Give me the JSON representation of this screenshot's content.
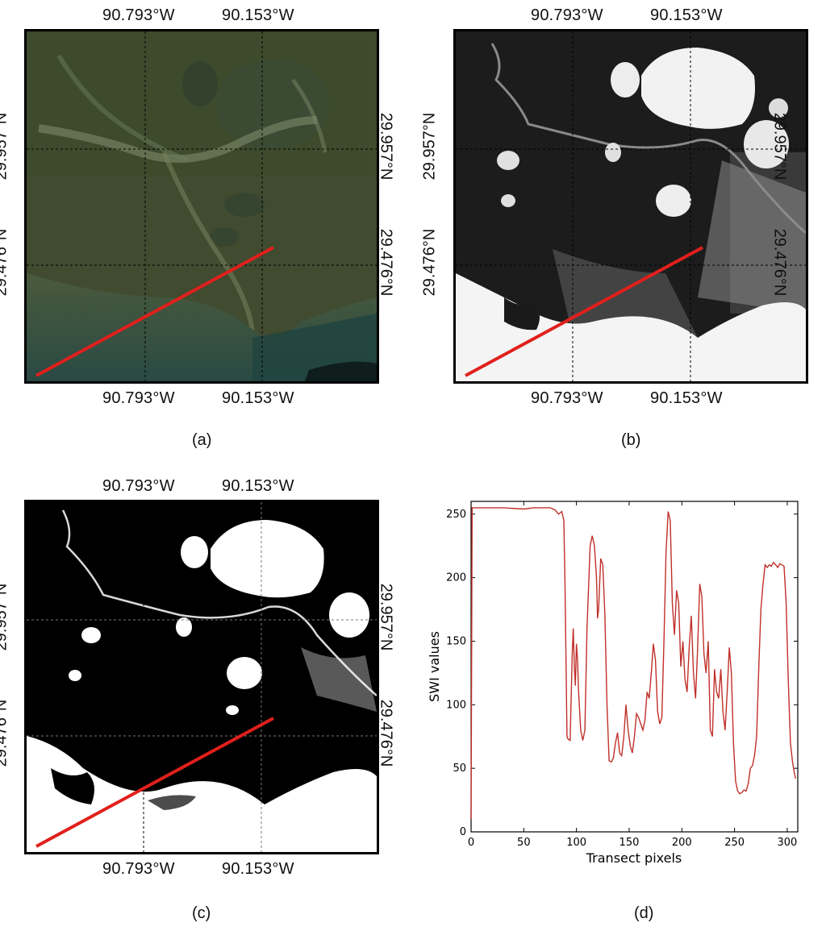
{
  "labels": {
    "lon_left": "90.793°W",
    "lon_right": "90.153°W",
    "lat_upper": "29.957°N",
    "lat_lower": "29.476°N"
  },
  "captions": {
    "a": "(a)",
    "b": "(b)",
    "c": "(c)",
    "d": "(d)"
  },
  "colors": {
    "transect": "#e0201c",
    "curve": "#c0302a",
    "grid": "#000000"
  },
  "chart_data": {
    "type": "line",
    "xlabel": "Transect pixels",
    "ylabel": "SWI values",
    "xlim": [
      0,
      310
    ],
    "ylim": [
      0,
      260
    ],
    "xticks": [
      0,
      50,
      100,
      150,
      200,
      250,
      300
    ],
    "yticks": [
      0,
      50,
      100,
      150,
      200,
      250
    ],
    "x": [
      0,
      1,
      2,
      10,
      30,
      50,
      60,
      75,
      80,
      83,
      86,
      88,
      89,
      90,
      91,
      92,
      94,
      96,
      97,
      98,
      99,
      100,
      101,
      102,
      104,
      106,
      108,
      110,
      113,
      115,
      117,
      119,
      120,
      121,
      123,
      125,
      127,
      129,
      131,
      133,
      135,
      137,
      139,
      141,
      143,
      145,
      147,
      149,
      151,
      153,
      155,
      157,
      159,
      161,
      163,
      165,
      167,
      169,
      171,
      173,
      175,
      177,
      179,
      181,
      183,
      185,
      187,
      189,
      191,
      193,
      195,
      197,
      199,
      201,
      203,
      205,
      207,
      209,
      211,
      213,
      215,
      217,
      219,
      221,
      223,
      225,
      227,
      229,
      231,
      233,
      235,
      237,
      239,
      241,
      243,
      245,
      247,
      249,
      251,
      253,
      255,
      257,
      259,
      261,
      263,
      265,
      267,
      269,
      271,
      273,
      275,
      277,
      279,
      281,
      283,
      285,
      287,
      289,
      291,
      293,
      295,
      297,
      299,
      301,
      303,
      305,
      307,
      308
    ],
    "y": [
      10,
      255,
      255,
      255,
      255,
      254,
      255,
      255,
      253,
      250,
      252,
      245,
      200,
      140,
      75,
      73,
      72,
      140,
      160,
      130,
      115,
      148,
      135,
      110,
      80,
      72,
      80,
      160,
      225,
      233,
      225,
      200,
      168,
      175,
      215,
      210,
      170,
      100,
      56,
      55,
      58,
      70,
      78,
      62,
      60,
      75,
      100,
      80,
      68,
      62,
      75,
      93,
      90,
      85,
      80,
      88,
      110,
      105,
      125,
      148,
      135,
      95,
      85,
      90,
      150,
      220,
      252,
      245,
      180,
      155,
      190,
      180,
      130,
      150,
      120,
      110,
      145,
      170,
      125,
      105,
      145,
      195,
      185,
      140,
      125,
      150,
      80,
      75,
      128,
      110,
      105,
      128,
      95,
      80,
      110,
      145,
      125,
      70,
      40,
      32,
      30,
      31,
      33,
      32,
      38,
      50,
      52,
      60,
      75,
      130,
      175,
      195,
      210,
      208,
      210,
      209,
      212,
      210,
      208,
      211,
      210,
      209,
      180,
      120,
      70,
      55,
      45,
      42
    ]
  }
}
